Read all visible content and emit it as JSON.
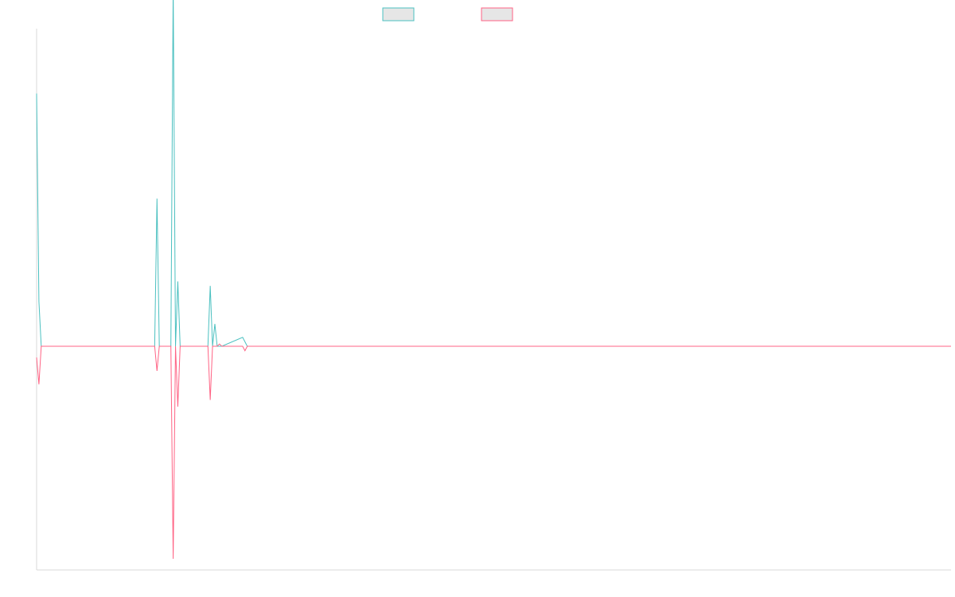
{
  "chart_data": {
    "type": "line",
    "title": "",
    "xlabel": "",
    "ylabel": "",
    "grid": false,
    "legend": {
      "placement": "top-center",
      "entries": [
        {
          "label": "",
          "color": "#4bc0c0",
          "fill": "#e6e6e6"
        },
        {
          "label": "",
          "color": "#ff6384",
          "fill": "#e6e6e6"
        }
      ]
    },
    "x_range": [
      0,
      395
    ],
    "ylim": [
      -1,
      1.42
    ],
    "series": [
      {
        "name": "",
        "color": "#4bc0c0",
        "x": [
          0,
          1,
          2,
          51,
          52,
          53,
          58,
          59,
          60,
          61,
          62,
          74,
          75,
          76,
          77,
          78,
          79,
          80,
          89,
          90,
          91,
          92,
          395
        ],
        "y": [
          1.13,
          0.2,
          0,
          0,
          0.66,
          0,
          0,
          1.61,
          0,
          0.29,
          0,
          0,
          0.27,
          0,
          0.1,
          0,
          0,
          0,
          0.04,
          0.02,
          0,
          0,
          0
        ]
      },
      {
        "name": "",
        "color": "#ff6384",
        "x": [
          0,
          1,
          2,
          51,
          52,
          53,
          58,
          59,
          60,
          61,
          62,
          74,
          75,
          76,
          77,
          78,
          79,
          80,
          89,
          90,
          91,
          92,
          395
        ],
        "y": [
          -0.05,
          -0.17,
          0,
          0,
          -0.11,
          0,
          0,
          -0.95,
          0,
          -0.27,
          0,
          0,
          -0.24,
          0,
          0,
          0,
          0.01,
          0,
          0,
          -0.02,
          0,
          0,
          0
        ]
      }
    ]
  }
}
